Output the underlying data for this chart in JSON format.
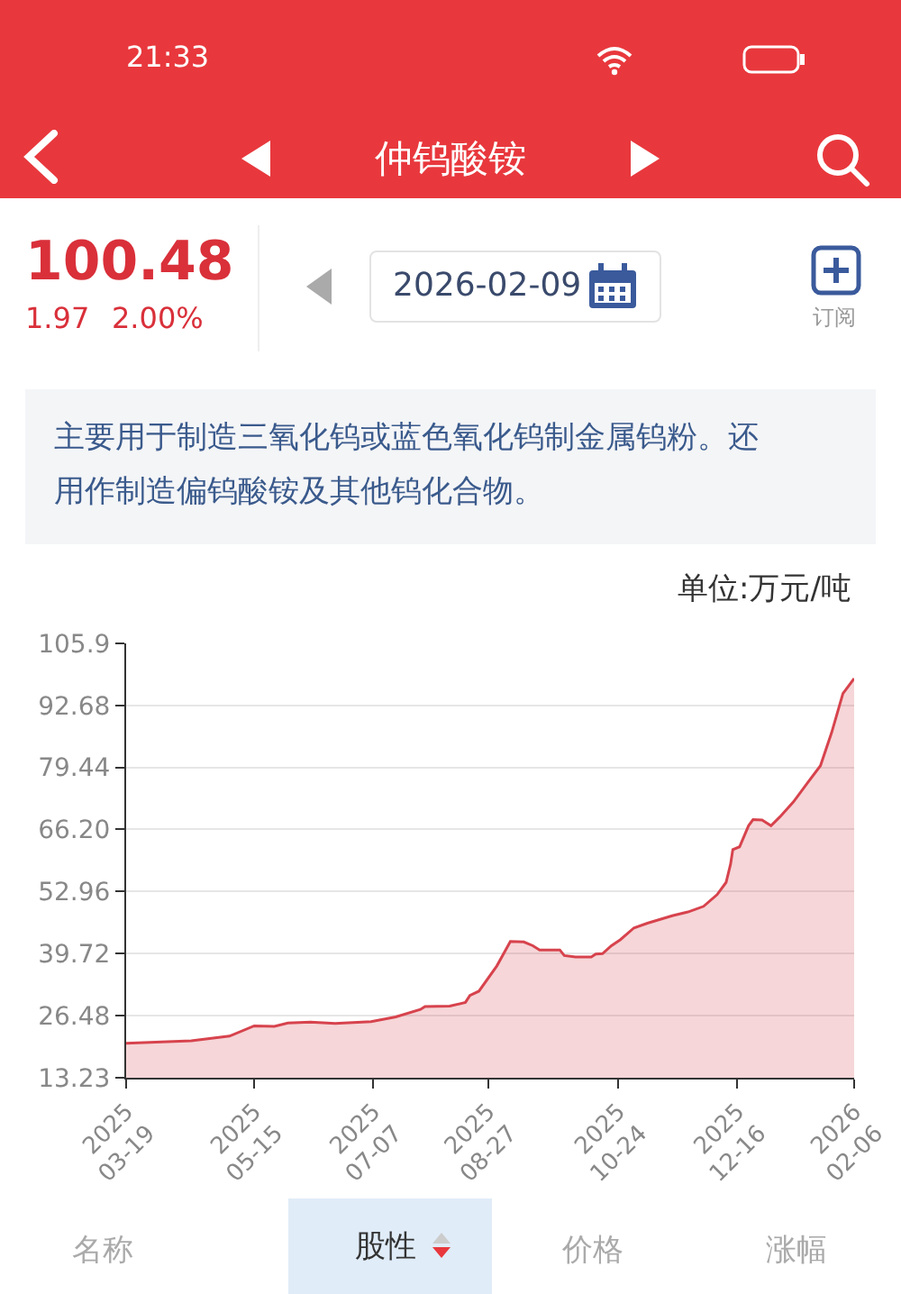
{
  "chart_data": {
    "type": "area",
    "title": "仲钨酸铵",
    "subtitle": "主要用于制造三氧化钨或蓝色氧化钨制金属钨粉。还用作制造偏钨酸铵及其他钨化合物。",
    "ylabel": "单位:万元/吨",
    "annotations": [
      "21:33",
      "100.48",
      "1.97",
      "2.00%",
      "2026-02-09",
      "订阅",
      "名称",
      "股性",
      "价格",
      "涨幅"
    ],
    "x": [
      "2025-03-19",
      "2025-04-17",
      "2025-05-04",
      "2025-05-15",
      "2025-05-24",
      "2025-05-30",
      "2025-06-09",
      "2025-06-20",
      "2025-07-06",
      "2025-07-17",
      "2025-07-28",
      "2025-07-30",
      "2025-08-10",
      "2025-08-17",
      "2025-08-19",
      "2025-08-23",
      "2025-08-31",
      "2025-09-06",
      "2025-09-12",
      "2025-09-16",
      "2025-09-19",
      "2025-09-28",
      "2025-09-30",
      "2025-10-05",
      "2025-10-12",
      "2025-10-14",
      "2025-10-17",
      "2025-10-21",
      "2025-10-25",
      "2025-10-31",
      "2025-11-06",
      "2025-11-17",
      "2025-11-24",
      "2025-12-01",
      "2025-12-07",
      "2025-12-11",
      "2025-12-13",
      "2025-12-14",
      "2025-12-17",
      "2025-12-21",
      "2025-12-23",
      "2025-12-27",
      "2025-12-31",
      "2026-01-04",
      "2026-01-10",
      "2026-01-16",
      "2026-01-22",
      "2026-01-27",
      "2026-02-01",
      "2026-02-06"
    ],
    "series": [
      {
        "color": "#d7434d",
        "values": [
          20.6,
          21.1,
          22.1,
          24.3,
          24.2,
          24.9,
          25.1,
          24.8,
          25.2,
          26.2,
          27.8,
          28.4,
          28.5,
          29.3,
          30.8,
          31.7,
          37.1,
          42.3,
          42.2,
          41.4,
          40.5,
          40.5,
          39.3,
          39.0,
          39.0,
          39.6,
          39.7,
          41.4,
          42.7,
          45.2,
          46.2,
          47.8,
          48.6,
          49.8,
          52.3,
          54.9,
          58.8,
          61.9,
          62.5,
          67.0,
          68.3,
          68.2,
          67.0,
          68.9,
          72.1,
          76.0,
          79.8,
          86.9,
          95.2,
          98.4
        ]
      }
    ],
    "xlim": [
      "2025-03-19",
      "2026-02-06"
    ],
    "xticks": [
      {
        "value": "2025-03-19",
        "label": "2025\n03-19"
      },
      {
        "value": "2025-05-15",
        "label": "2025\n05-15"
      },
      {
        "value": "2025-07-07",
        "label": "2025\n07-07"
      },
      {
        "value": "2025-08-27",
        "label": "2025\n08-27"
      },
      {
        "value": "2025-10-24",
        "label": "2025\n10-24"
      },
      {
        "value": "2025-12-16",
        "label": "2025\n12-16"
      },
      {
        "value": "2026-02-06",
        "label": "2026\n02-06"
      }
    ],
    "ylim": [
      13.23,
      105.9
    ],
    "yticks": [
      13.23,
      26.48,
      39.72,
      52.96,
      {
        "value": 66.2,
        "label": "66.20"
      },
      79.44,
      92.68,
      105.9
    ],
    "grid": "y",
    "marker": "none",
    "line_style": "solid"
  }
}
